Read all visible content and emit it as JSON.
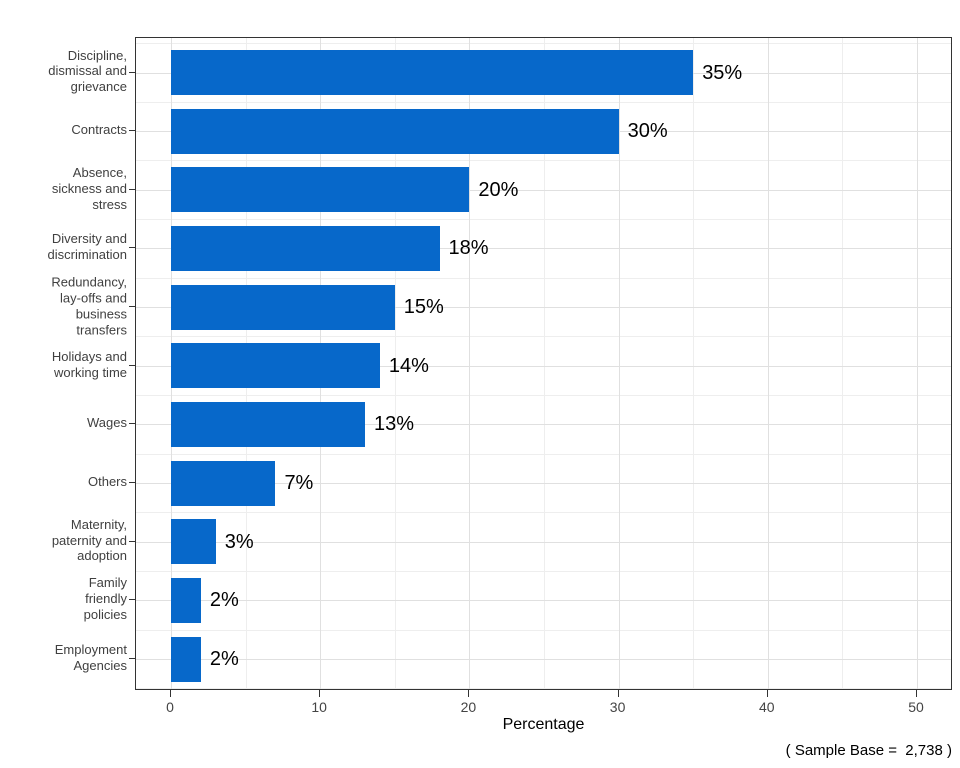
{
  "figure": {
    "background": "#ffffff",
    "footer_note": "( Sample Base =  2,738 )"
  },
  "chart_data": {
    "type": "bar",
    "orientation": "horizontal",
    "title": "",
    "xlabel": "Percentage",
    "ylabel": "",
    "categories": [
      "Discipline,\ndismissal and\ngrievance",
      "Contracts",
      "Absence,\nsickness and\nstress",
      "Diversity and\ndiscrimination",
      "Redundancy,\nlay-offs and\nbusiness\ntransfers",
      "Holidays and\nworking time",
      "Wages",
      "Others",
      "Maternity,\npaternity and\nadoption",
      "Family\nfriendly\npolicies",
      "Employment\nAgencies"
    ],
    "values": [
      35,
      30,
      20,
      18,
      15,
      14,
      13,
      7,
      3,
      2,
      2
    ],
    "value_labels": [
      "35%",
      "30%",
      "20%",
      "18%",
      "15%",
      "14%",
      "13%",
      "7%",
      "3%",
      "2%",
      "2%"
    ],
    "xlim": [
      0,
      50
    ],
    "x_ticks": [
      0,
      10,
      20,
      30,
      40,
      50
    ],
    "x_tick_labels": [
      "0",
      "10",
      "20",
      "30",
      "40",
      "50"
    ],
    "x_minor_ticks": [
      5,
      15,
      25,
      35,
      45
    ],
    "legend": "none",
    "grid": "major and minor vertical and horizontal, light gray, white panel, dark border",
    "bar_color": "#0768CA",
    "panel_border_color": "#333333",
    "axis_text_color": "#404040",
    "value_label_color": "#000000"
  }
}
